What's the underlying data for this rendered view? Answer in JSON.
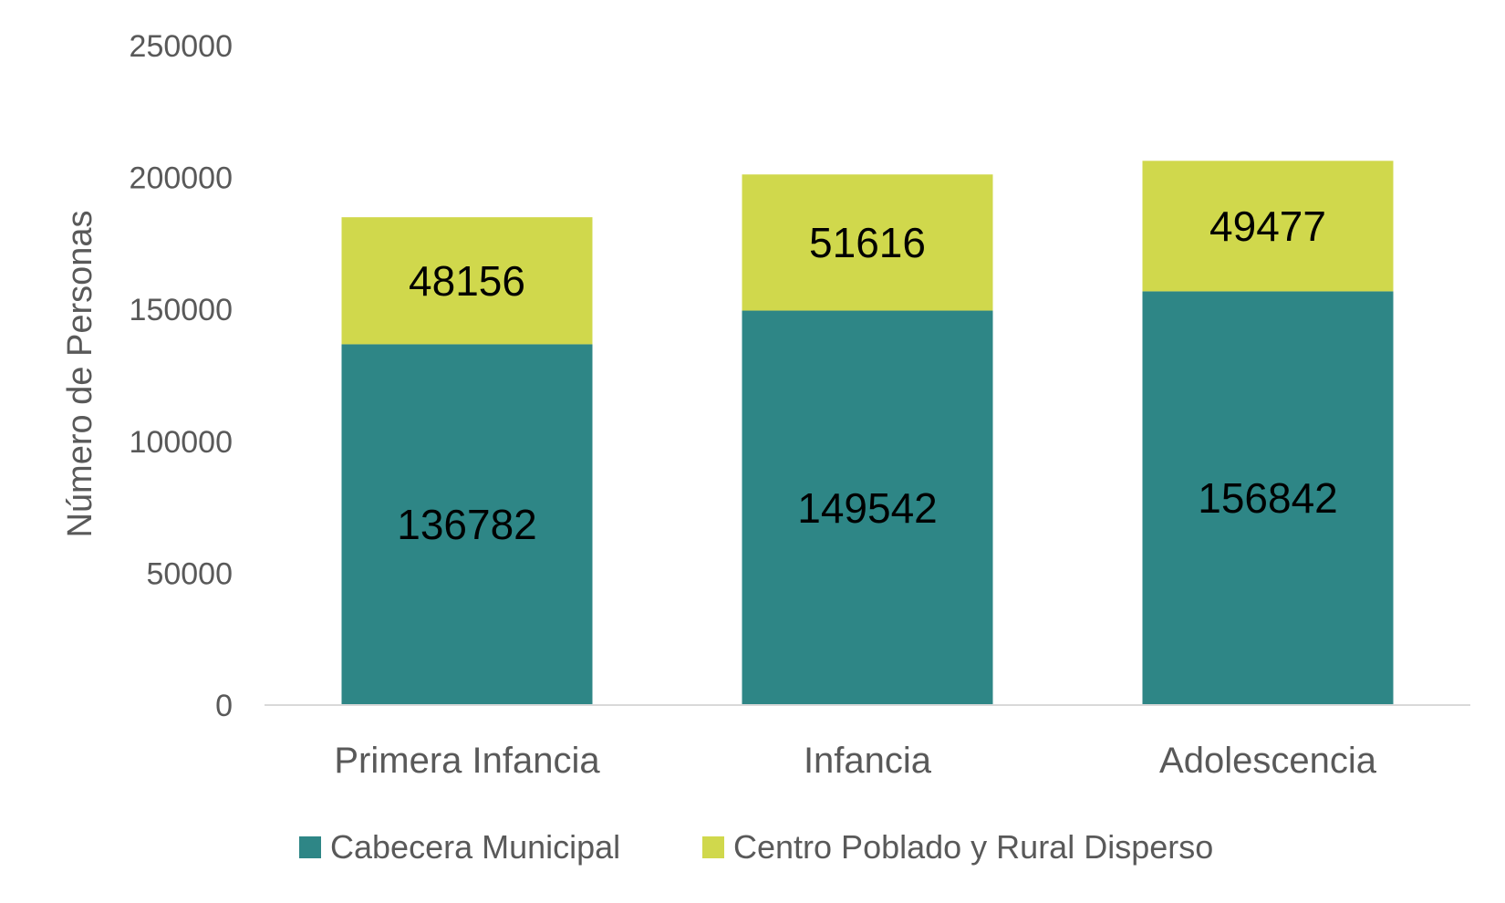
{
  "chart_data": {
    "type": "bar",
    "stacked": true,
    "categories": [
      "Primera Infancia",
      "Infancia",
      "Adolescencia"
    ],
    "series": [
      {
        "name": "Cabecera Municipal",
        "values": [
          136782,
          149542,
          156842
        ],
        "color": "#2E8686"
      },
      {
        "name": "Centro Poblado y Rural Disperso",
        "values": [
          48156,
          51616,
          49477
        ],
        "color": "#D0D84C"
      }
    ],
    "title": "",
    "xlabel": "",
    "ylabel": "Número de Personas",
    "ylim": [
      0,
      250000
    ],
    "yticks": [
      0,
      50000,
      100000,
      150000,
      200000,
      250000
    ],
    "grid": false,
    "legend_position": "bottom",
    "colors": {
      "axis_line": "#D9D9D9",
      "axis_text": "#595959",
      "data_label": "#000000"
    }
  }
}
